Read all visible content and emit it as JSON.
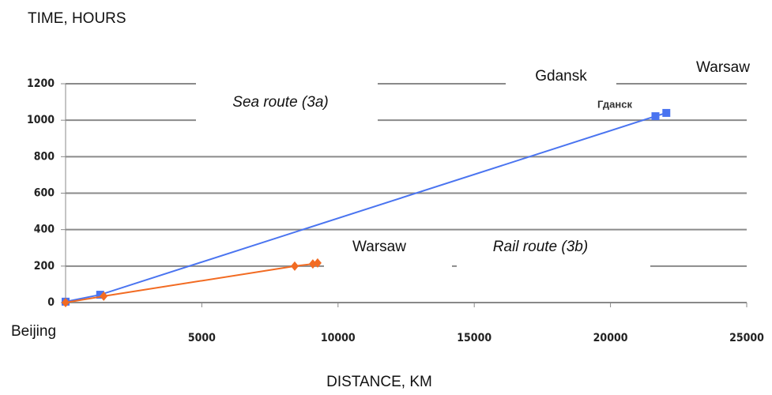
{
  "chart_data": {
    "type": "line",
    "ylabel": "TIME, HOURS",
    "xlabel": "DISTANCE, KM",
    "xlim": [
      0,
      25000
    ],
    "xticks": [
      5000,
      10000,
      15000,
      20000,
      25000
    ],
    "ylim": [
      0,
      1200
    ],
    "yticks": [
      0,
      200,
      400,
      600,
      800,
      1000,
      1200
    ],
    "grid": true,
    "series": [
      {
        "name": "Sea route (3a)",
        "color": "#4a74f0",
        "x": [
          0,
          1270,
          21650,
          22050
        ],
        "values": [
          5,
          43,
          1022,
          1040
        ]
      },
      {
        "name": "Rail route (3b)",
        "color": "#f26b22",
        "x": [
          0,
          1400,
          8410,
          9075,
          9250
        ],
        "values": [
          0,
          35,
          200,
          212,
          217
        ]
      }
    ],
    "annotations": [
      "Beijing",
      "Gdansk",
      "Warsaw",
      "Гданск",
      "Warsaw"
    ]
  }
}
